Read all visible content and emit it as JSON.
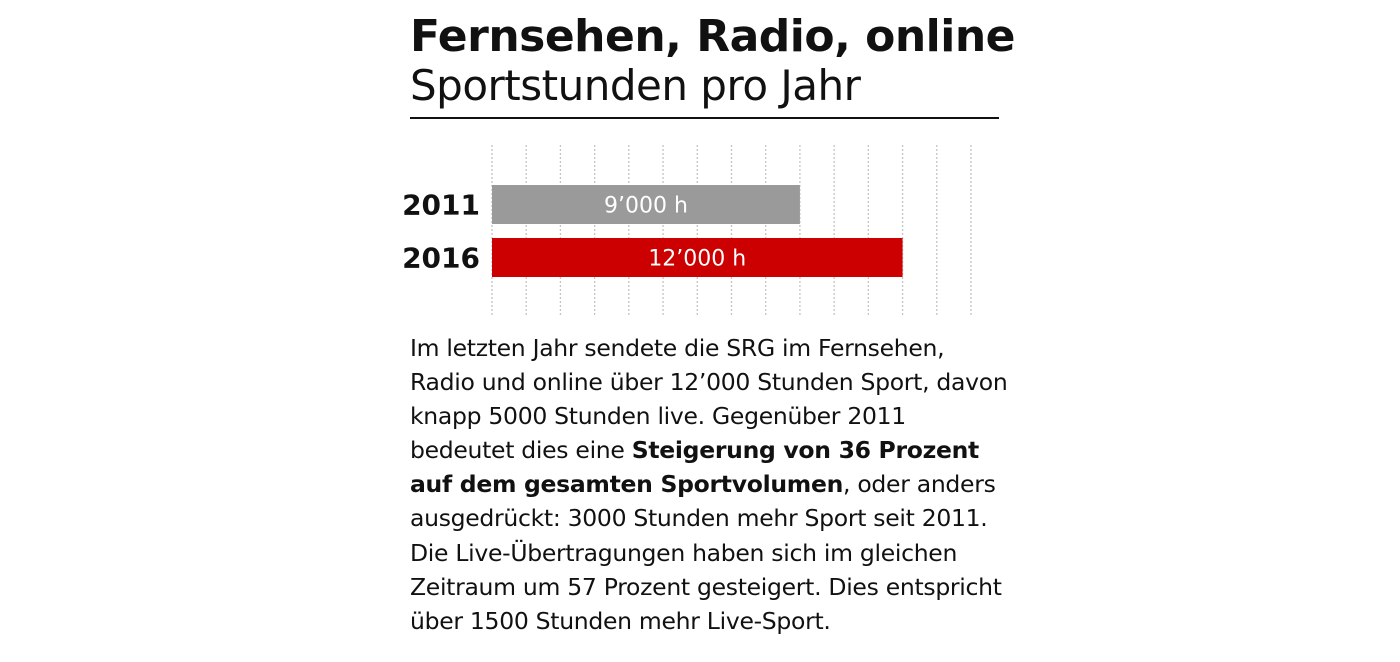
{
  "header": {
    "title": "Fernsehen, Radio, online",
    "subtitle": "Sportstunden pro Jahr"
  },
  "chart_data": {
    "type": "bar",
    "orientation": "horizontal",
    "categories": [
      "2011",
      "2016"
    ],
    "values": [
      9000,
      12000
    ],
    "value_labels": [
      "9’000 h",
      "12’000 h"
    ],
    "colors": [
      "#9a9a9a",
      "#cc0000"
    ],
    "xlim": [
      0,
      14000
    ],
    "grid": "vertical dashed",
    "title": "Fernsehen, Radio, online",
    "subtitle": "Sportstunden pro Jahr"
  },
  "body": {
    "intro": "Im letzten Jahr sendete die SRG im Fernsehen, Radio und online über 12’000 Stunden Sport, davon knapp 5000 Stunden live. Gegenüber 2011 bedeutet dies eine ",
    "highlight": "Steigerung von 36 Prozent auf dem gesamten Sportvolumen",
    "outro": ", oder anders ausgedrückt: 3000 Stunden mehr Sport seit 2011. Die Live-Übertragungen haben sich im gleichen Zeitraum um 57 Prozent gesteigert. Dies entspricht über 1500 Stunden mehr Live-Sport."
  }
}
